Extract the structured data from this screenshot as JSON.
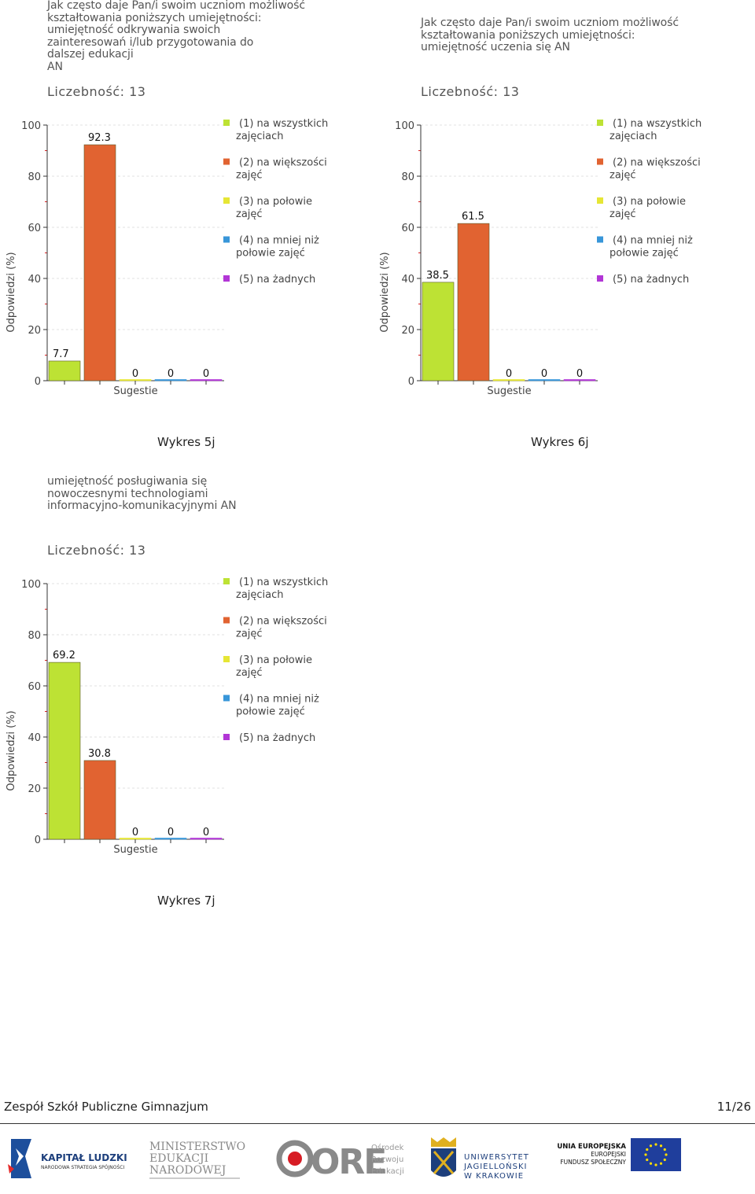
{
  "chart_data": [
    {
      "type": "bar",
      "title": "Jak często daje Pan/i swoim uczniom możliwość\nkształtowania poniższych umiejętności:\numiejętność odkrywania swoich\nzainteresowań i/lub przygotowania do\ndalszej edukacji\n AN",
      "count_label": "Liczebność: 13",
      "ylabel": "Odpowiedzi (%)",
      "xlabel": "Sugestie",
      "ylim": [
        0,
        100
      ],
      "yticks": [
        "0",
        "20",
        "40",
        "60",
        "80",
        "100"
      ],
      "series": [
        {
          "name": "(1) na wszystkich\nzajęciach",
          "value": 7.7,
          "label": "7.7",
          "color": "#bde234"
        },
        {
          "name": "(2) na większości\nzajęć",
          "value": 92.3,
          "label": "92.3",
          "color": "#e16331"
        },
        {
          "name": "(3) na połowie\nzajęć",
          "value": 0,
          "label": "0",
          "color": "#e6e635"
        },
        {
          "name": "(4) na mniej niż\npołowie zajęć",
          "value": 0,
          "label": "0",
          "color": "#3896d9"
        },
        {
          "name": "(5) na żadnych",
          "value": 0,
          "label": "0",
          "color": "#b236d6"
        }
      ],
      "caption": "Wykres 5j"
    },
    {
      "type": "bar",
      "title": "Jak często daje Pan/i swoim uczniom możliwość\nkształtowania poniższych umiejętności:\numiejętność uczenia się AN",
      "count_label": "Liczebność: 13",
      "ylabel": "Odpowiedzi (%)",
      "xlabel": "Sugestie",
      "ylim": [
        0,
        100
      ],
      "yticks": [
        "0",
        "20",
        "40",
        "60",
        "80",
        "100"
      ],
      "series": [
        {
          "name": "(1) na wszystkich\nzajęciach",
          "value": 38.5,
          "label": "38.5",
          "color": "#bde234"
        },
        {
          "name": "(2) na większości\nzajęć",
          "value": 61.5,
          "label": "61.5",
          "color": "#e16331"
        },
        {
          "name": "(3) na połowie\nzajęć",
          "value": 0,
          "label": "0",
          "color": "#e6e635"
        },
        {
          "name": "(4) na mniej niż\npołowie zajęć",
          "value": 0,
          "label": "0",
          "color": "#3896d9"
        },
        {
          "name": "(5) na żadnych",
          "value": 0,
          "label": "0",
          "color": "#b236d6"
        }
      ],
      "caption": "Wykres 6j"
    },
    {
      "type": "bar",
      "title": "umiejętność posługiwania się\nnowoczesnymi technologiami\ninformacyjno-komunikacyjnymi AN",
      "count_label": "Liczebność: 13",
      "ylabel": "Odpowiedzi (%)",
      "xlabel": "Sugestie",
      "ylim": [
        0,
        100
      ],
      "yticks": [
        "0",
        "20",
        "40",
        "60",
        "80",
        "100"
      ],
      "series": [
        {
          "name": "(1) na wszystkich\nzajęciach",
          "value": 69.2,
          "label": "69.2",
          "color": "#bde234"
        },
        {
          "name": "(2) na większości\nzajęć",
          "value": 30.8,
          "label": "30.8",
          "color": "#e16331"
        },
        {
          "name": "(3) na połowie\nzajęć",
          "value": 0,
          "label": "0",
          "color": "#e6e635"
        },
        {
          "name": "(4) na mniej niż\npołowie zajęć",
          "value": 0,
          "label": "0",
          "color": "#3896d9"
        },
        {
          "name": "(5) na żadnych",
          "value": 0,
          "label": "0",
          "color": "#b236d6"
        }
      ],
      "caption": "Wykres 7j"
    }
  ],
  "footer": {
    "school": "Zespół Szkół Publiczne Gimnazjum",
    "page": "11/26"
  },
  "logos": {
    "kapital": "KAPITAŁ LUDZKI",
    "kapital_sub": "NARODOWA STRATEGIA SPÓJNOŚCI",
    "men1": "MINISTERSTWO",
    "men2": "EDUKACJI",
    "men3": "NARODOWEJ",
    "ore": "ORE",
    "ore1": "Ośrodek",
    "ore2": "Rozwoju",
    "ore3": "Edukacji",
    "uj1": "UNIWERSYTET",
    "uj2": "JAGIELLOŃSKI",
    "uj3": "W KRAKOWIE",
    "ue1": "UNIA EUROPEJSKA",
    "ue2": "EUROPEJSKI",
    "ue3": "FUNDUSZ SPOŁECZNY"
  }
}
